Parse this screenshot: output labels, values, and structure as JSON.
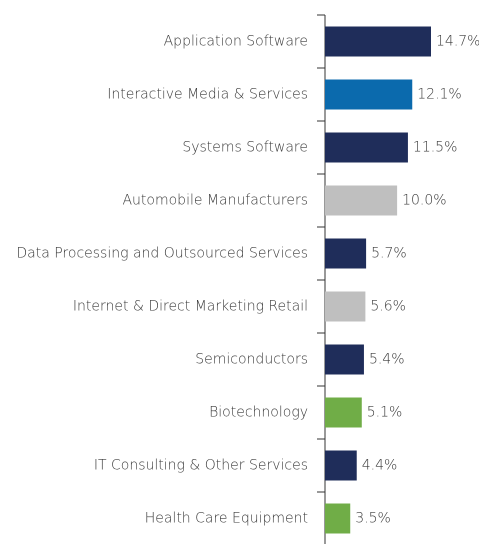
{
  "chart_data": {
    "type": "bar",
    "orientation": "horizontal",
    "categories": [
      "Application Software",
      "Interactive Media & Services",
      "Systems Software",
      "Automobile Manufacturers",
      "Data Processing and Outsourced Services",
      "Internet & Direct Marketing Retail",
      "Semiconductors",
      "Biotechnology",
      "IT Consulting & Other Services",
      "Health Care Equipment"
    ],
    "values": [
      14.7,
      12.1,
      11.5,
      10.0,
      5.7,
      5.6,
      5.4,
      5.1,
      4.4,
      3.5
    ],
    "value_labels": [
      "14.7%",
      "12.1%",
      "11.5%",
      "10.0%",
      "5.7%",
      "5.6%",
      "5.4%",
      "5.1%",
      "4.4%",
      "3.5%"
    ],
    "colors": [
      "#1f2d5a",
      "#0b6aad",
      "#1f2d5a",
      "#bfbfbf",
      "#1f2d5a",
      "#bfbfbf",
      "#1f2d5a",
      "#70ad47",
      "#1f2d5a",
      "#70ad47"
    ]
  }
}
